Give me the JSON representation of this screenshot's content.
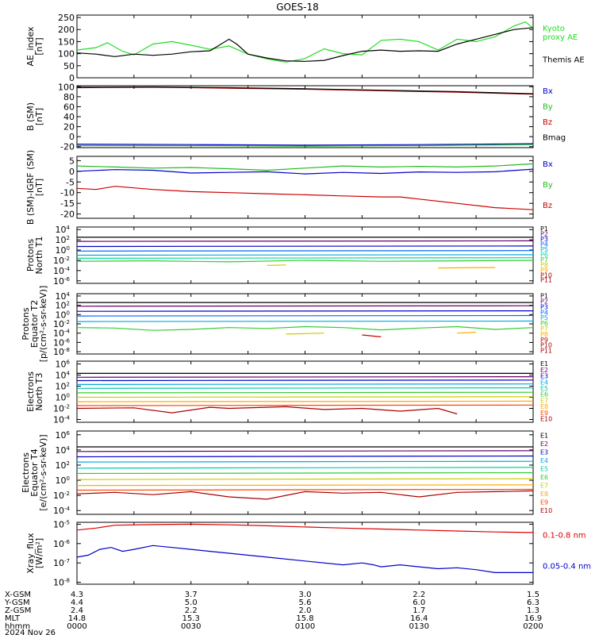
{
  "title": "GOES-18",
  "chart_data": [
    {
      "type": "line",
      "ylabel": "AE_index\n[nT]",
      "y_ticks": [
        "250",
        "200",
        "150",
        "100",
        "50",
        "0"
      ],
      "ylim": [
        0,
        260
      ],
      "xlim": [
        0,
        120
      ],
      "series": [
        {
          "name": "Kyoto\nproxy AE",
          "color": "#22dd22",
          "x": [
            0,
            5,
            8,
            12,
            15,
            20,
            25,
            30,
            35,
            40,
            45,
            50,
            55,
            60,
            65,
            70,
            75,
            80,
            85,
            90,
            95,
            100,
            105,
            110,
            115,
            118,
            120
          ],
          "y": [
            115,
            125,
            145,
            110,
            95,
            140,
            150,
            135,
            118,
            132,
            98,
            78,
            65,
            80,
            120,
            100,
            95,
            155,
            160,
            150,
            115,
            160,
            150,
            170,
            215,
            232,
            205
          ]
        },
        {
          "name": "Themis AE",
          "color": "#000000",
          "x": [
            0,
            5,
            10,
            15,
            20,
            25,
            30,
            35,
            40,
            42,
            45,
            50,
            55,
            60,
            65,
            70,
            75,
            80,
            85,
            90,
            95,
            100,
            105,
            110,
            115,
            120
          ],
          "y": [
            103,
            98,
            88,
            98,
            93,
            98,
            108,
            112,
            160,
            140,
            98,
            82,
            70,
            68,
            72,
            92,
            110,
            115,
            110,
            112,
            110,
            140,
            160,
            180,
            200,
            208
          ]
        }
      ]
    },
    {
      "type": "line",
      "ylabel": "B (SM)\n[nT]",
      "y_ticks": [
        "100",
        "80",
        "60",
        "40",
        "20",
        "0",
        "-20"
      ],
      "ylim": [
        -22,
        102
      ],
      "xlim": [
        0,
        120
      ],
      "series": [
        {
          "name": "Bx",
          "color": "#0000cc",
          "x": [
            0,
            30,
            60,
            90,
            120
          ],
          "y": [
            -15,
            -16,
            -17,
            -16,
            -14
          ]
        },
        {
          "name": "By",
          "color": "#22bb22",
          "x": [
            0,
            30,
            60,
            90,
            120
          ],
          "y": [
            -18,
            -18,
            -19,
            -18,
            -16
          ]
        },
        {
          "name": "Bz",
          "color": "#cc0000",
          "x": [
            0,
            20,
            40,
            60,
            80,
            100,
            120
          ],
          "y": [
            98,
            99,
            97,
            95,
            92,
            89,
            85
          ]
        },
        {
          "name": "Bmag",
          "color": "#000000",
          "x": [
            0,
            20,
            40,
            60,
            80,
            100,
            120
          ],
          "y": [
            99,
            99.5,
            98,
            96,
            93,
            90,
            86
          ]
        }
      ]
    },
    {
      "type": "line",
      "ylabel": "B (SM)-IGRF (SM)\n[nT]",
      "y_ticks": [
        "5",
        "0",
        "-5",
        "-10",
        "-15",
        "-20"
      ],
      "ylim": [
        -22,
        7
      ],
      "xlim": [
        0,
        120
      ],
      "series": [
        {
          "name": "Bx",
          "color": "#0000cc",
          "x": [
            0,
            10,
            20,
            30,
            40,
            50,
            60,
            70,
            80,
            90,
            100,
            110,
            120
          ],
          "y": [
            0,
            0.8,
            0.5,
            -0.8,
            -0.5,
            -0.2,
            -1.2,
            -0.5,
            -1.0,
            -0.3,
            -0.5,
            -0.2,
            1.0
          ]
        },
        {
          "name": "By",
          "color": "#22bb22",
          "x": [
            0,
            10,
            20,
            30,
            40,
            50,
            60,
            70,
            80,
            90,
            100,
            110,
            120
          ],
          "y": [
            2.5,
            2.0,
            1.5,
            1.8,
            1.2,
            0.5,
            1.5,
            2.5,
            2.0,
            2.3,
            2.0,
            2.5,
            3.5
          ]
        },
        {
          "name": "Bz",
          "color": "#cc0000",
          "x": [
            0,
            5,
            10,
            20,
            30,
            40,
            50,
            60,
            70,
            80,
            85,
            90,
            100,
            110,
            120
          ],
          "y": [
            -8,
            -8.5,
            -7,
            -8.5,
            -9.5,
            -10,
            -10.5,
            -11,
            -11.5,
            -12,
            -12,
            -13,
            -15,
            -17,
            -18
          ]
        }
      ]
    },
    {
      "type": "line",
      "ylabel": "Protons\nNorth T1",
      "y_ticks": [
        "10^4",
        "10^2",
        "10^0",
        "10^-2",
        "10^-4",
        "10^-6"
      ],
      "ylog": true,
      "ylim": [
        -6.5,
        4.5
      ],
      "xlim": [
        0,
        120
      ],
      "series": [
        {
          "name": "P1",
          "color": "#000000",
          "x": [
            0,
            120
          ],
          "y": [
            2.5,
            2.5
          ]
        },
        {
          "name": "P2",
          "color": "#660066",
          "x": [
            0,
            120
          ],
          "y": [
            1.7,
            1.8
          ]
        },
        {
          "name": "P3",
          "color": "#0000cc",
          "x": [
            0,
            120
          ],
          "y": [
            0.7,
            0.8
          ]
        },
        {
          "name": "P4",
          "color": "#0066ff",
          "x": [
            0,
            120
          ],
          "y": [
            -0.2,
            -0.1
          ]
        },
        {
          "name": "P5",
          "color": "#00aadd",
          "x": [
            0,
            120
          ],
          "y": [
            -1.0,
            -0.9
          ]
        },
        {
          "name": "P6",
          "color": "#00dd99",
          "x": [
            0,
            120
          ],
          "y": [
            -1.6,
            -1.5
          ]
        },
        {
          "name": "P7",
          "color": "#33cc33",
          "x": [
            0,
            20,
            40,
            60,
            80,
            100,
            120
          ],
          "y": [
            -2.2,
            -2.1,
            -2.3,
            -2.0,
            -2.2,
            -2.1,
            -2.0
          ]
        },
        {
          "name": "P8",
          "color": "#cccc00",
          "x": [
            50,
            55
          ],
          "y": [
            -3.0,
            -2.9
          ]
        },
        {
          "name": "P9",
          "color": "#ffaa00",
          "x": [
            95,
            110
          ],
          "y": [
            -3.5,
            -3.4
          ]
        }
      ],
      "labels": [
        "P1",
        "P2",
        "P3",
        "P4",
        "P5",
        "P6",
        "P7",
        "P8",
        "P9",
        "P10",
        "P11"
      ]
    },
    {
      "type": "line",
      "ylabel": "Protons\nEquator T2\n[p/(cm²-s-sr-keV)]",
      "y_ticks": [
        "10^4",
        "10^2",
        "10^0",
        "10^-2",
        "10^-4",
        "10^-6",
        "10^-8"
      ],
      "ylog": true,
      "ylim": [
        -8.5,
        4.5
      ],
      "xlim": [
        0,
        120
      ],
      "series": [
        {
          "name": "P1",
          "color": "#000000",
          "x": [
            0,
            120
          ],
          "y": [
            2.6,
            2.6
          ]
        },
        {
          "name": "P2",
          "color": "#660066",
          "x": [
            0,
            120
          ],
          "y": [
            1.8,
            1.9
          ]
        },
        {
          "name": "P3",
          "color": "#0000cc",
          "x": [
            0,
            120
          ],
          "y": [
            0.7,
            0.8
          ]
        },
        {
          "name": "P4",
          "color": "#0066ff",
          "x": [
            0,
            120
          ],
          "y": [
            -0.3,
            -0.2
          ]
        },
        {
          "name": "P5",
          "color": "#00aadd",
          "x": [
            0,
            120
          ],
          "y": [
            -1.5,
            -1.4
          ]
        },
        {
          "name": "P6",
          "color": "#33cc33",
          "x": [
            0,
            10,
            20,
            30,
            40,
            50,
            60,
            70,
            80,
            90,
            100,
            110,
            120
          ],
          "y": [
            -2.8,
            -2.9,
            -3.4,
            -3.2,
            -2.8,
            -3.0,
            -2.6,
            -2.8,
            -3.3,
            -2.9,
            -2.6,
            -3.2,
            -2.8
          ]
        },
        {
          "name": "P7",
          "color": "#cccc00",
          "x": [
            55,
            65
          ],
          "y": [
            -4.2,
            -4.0
          ]
        },
        {
          "name": "P8",
          "color": "#ffaa00",
          "x": [
            100,
            105
          ],
          "y": [
            -4.0,
            -3.8
          ]
        },
        {
          "name": "P9",
          "color": "#cc0000",
          "x": [
            75,
            80
          ],
          "y": [
            -4.4,
            -4.8
          ]
        }
      ],
      "labels": [
        "P1",
        "P2",
        "P3",
        "P4",
        "P5",
        "P6",
        "P7",
        "P8",
        "P9",
        "P10",
        "P11"
      ]
    },
    {
      "type": "line",
      "ylabel": "Electrons\nNorth T3",
      "y_ticks": [
        "10^6",
        "10^4",
        "10^2",
        "10^0",
        "10^-2",
        "10^-4"
      ],
      "ylog": true,
      "ylim": [
        -4.5,
        6.5
      ],
      "xlim": [
        0,
        120
      ],
      "series": [
        {
          "name": "E1",
          "color": "#000000",
          "x": [
            0,
            120
          ],
          "y": [
            4.3,
            4.3
          ]
        },
        {
          "name": "E2",
          "color": "#660066",
          "x": [
            0,
            120
          ],
          "y": [
            3.6,
            3.7
          ]
        },
        {
          "name": "E3",
          "color": "#0000cc",
          "x": [
            0,
            120
          ],
          "y": [
            3.0,
            3.1
          ]
        },
        {
          "name": "E4",
          "color": "#00aadd",
          "x": [
            0,
            120
          ],
          "y": [
            2.3,
            2.4
          ]
        },
        {
          "name": "E5",
          "color": "#00ccaa",
          "x": [
            0,
            120
          ],
          "y": [
            1.6,
            1.7
          ]
        },
        {
          "name": "E6",
          "color": "#33cc33",
          "x": [
            0,
            120
          ],
          "y": [
            0.8,
            0.9
          ]
        },
        {
          "name": "E7",
          "color": "#cccc00",
          "x": [
            0,
            120
          ],
          "y": [
            0.0,
            0.1
          ]
        },
        {
          "name": "E8",
          "color": "#ffaa00",
          "x": [
            0,
            120
          ],
          "y": [
            -0.8,
            -0.7
          ]
        },
        {
          "name": "E9",
          "color": "#ff4400",
          "x": [
            0,
            120
          ],
          "y": [
            -1.5,
            -1.4
          ]
        },
        {
          "name": "E10",
          "color": "#aa0000",
          "x": [
            0,
            15,
            25,
            35,
            40,
            55,
            65,
            75,
            85,
            95,
            100
          ],
          "y": [
            -2.0,
            -1.9,
            -2.8,
            -1.8,
            -2.0,
            -1.7,
            -2.2,
            -2.0,
            -2.5,
            -2.0,
            -3.0
          ]
        }
      ],
      "labels": [
        "E1",
        "E2",
        "E3",
        "E4",
        "E5",
        "E6",
        "E7",
        "E8",
        "E9",
        "E10"
      ]
    },
    {
      "type": "line",
      "ylabel": "Electrons\nEquator T4\n[e/(cm²-s-sr-keV)]",
      "y_ticks": [
        "10^6",
        "10^4",
        "10^2",
        "10^0",
        "10^-2",
        "10^-4"
      ],
      "ylog": true,
      "ylim": [
        -4.5,
        6.5
      ],
      "xlim": [
        0,
        120
      ],
      "series": [
        {
          "name": "E1",
          "color": "#000000",
          "x": [
            0,
            120
          ],
          "y": [
            4.4,
            4.4
          ]
        },
        {
          "name": "E2",
          "color": "#660066",
          "x": [
            0,
            120
          ],
          "y": [
            3.8,
            3.9
          ]
        },
        {
          "name": "E3",
          "color": "#0000cc",
          "x": [
            0,
            120
          ],
          "y": [
            3.1,
            3.2
          ]
        },
        {
          "name": "E4",
          "color": "#00aadd",
          "x": [
            0,
            120
          ],
          "y": [
            2.4,
            2.5
          ]
        },
        {
          "name": "E5",
          "color": "#00ccaa",
          "x": [
            0,
            120
          ],
          "y": [
            1.6,
            1.7
          ]
        },
        {
          "name": "E6",
          "color": "#33cc33",
          "x": [
            0,
            120
          ],
          "y": [
            0.9,
            1.0
          ]
        },
        {
          "name": "E7",
          "color": "#cccc00",
          "x": [
            0,
            120
          ],
          "y": [
            0.1,
            0.2
          ]
        },
        {
          "name": "E8",
          "color": "#ffaa00",
          "x": [
            0,
            120
          ],
          "y": [
            -0.7,
            -0.6
          ]
        },
        {
          "name": "E9",
          "color": "#ff4400",
          "x": [
            0,
            120
          ],
          "y": [
            -1.3,
            -1.2
          ]
        },
        {
          "name": "E10",
          "color": "#aa0000",
          "x": [
            0,
            10,
            20,
            30,
            40,
            50,
            60,
            70,
            80,
            90,
            100,
            110,
            120
          ],
          "y": [
            -1.8,
            -1.6,
            -1.9,
            -1.5,
            -2.2,
            -2.5,
            -1.5,
            -1.7,
            -1.6,
            -2.2,
            -1.6,
            -1.5,
            -1.4
          ]
        }
      ],
      "labels": [
        "E1",
        "E2",
        "E3",
        "E4",
        "E5",
        "E6",
        "E7",
        "E8",
        "E9",
        "E10"
      ]
    },
    {
      "type": "line",
      "ylabel": "Xray_flux\n[W/m²]",
      "y_ticks": [
        "10^-5",
        "10^-6",
        "10^-7",
        "10^-8"
      ],
      "ylog": true,
      "ylim": [
        -8.1,
        -4.9
      ],
      "xlim": [
        0,
        120
      ],
      "series": [
        {
          "name": "0.1-0.8 nm",
          "color": "#dd0000",
          "x": [
            0,
            5,
            10,
            20,
            30,
            40,
            50,
            60,
            70,
            80,
            90,
            100,
            110,
            120
          ],
          "y": [
            -5.3,
            -5.2,
            -5.05,
            -5.02,
            -5.0,
            -5.03,
            -5.08,
            -5.14,
            -5.2,
            -5.25,
            -5.3,
            -5.35,
            -5.4,
            -5.43
          ]
        },
        {
          "name": "0.05-0.4 nm",
          "color": "#0000cc",
          "x": [
            0,
            3,
            6,
            9,
            12,
            15,
            20,
            25,
            30,
            35,
            40,
            50,
            60,
            70,
            75,
            78,
            80,
            85,
            90,
            95,
            100,
            105,
            110,
            115,
            120
          ],
          "y": [
            -6.7,
            -6.6,
            -6.3,
            -6.2,
            -6.4,
            -6.3,
            -6.1,
            -6.2,
            -6.3,
            -6.4,
            -6.5,
            -6.7,
            -6.9,
            -7.1,
            -7.0,
            -7.1,
            -7.2,
            -7.1,
            -7.2,
            -7.3,
            -7.25,
            -7.35,
            -7.5,
            -7.5,
            -7.5
          ]
        }
      ]
    }
  ],
  "x_axis": {
    "row_labels": [
      "X-GSM",
      "Y-GSM",
      "Z-GSM",
      "MLT",
      "hhmm"
    ],
    "date": "2024 Nov 26",
    "columns": [
      {
        "x": 0,
        "values": [
          "4.3",
          "4.4",
          "2.4",
          "14.8",
          "0000"
        ]
      },
      {
        "x": 30,
        "values": [
          "3.7",
          "5.0",
          "2.2",
          "15.3",
          "0030"
        ]
      },
      {
        "x": 60,
        "values": [
          "3.0",
          "5.6",
          "2.0",
          "15.8",
          "0100"
        ]
      },
      {
        "x": 90,
        "values": [
          "2.2",
          "6.0",
          "1.7",
          "16.4",
          "0130"
        ]
      },
      {
        "x": 120,
        "values": [
          "1.5",
          "6.3",
          "1.3",
          "16.9",
          "0200"
        ]
      }
    ]
  }
}
